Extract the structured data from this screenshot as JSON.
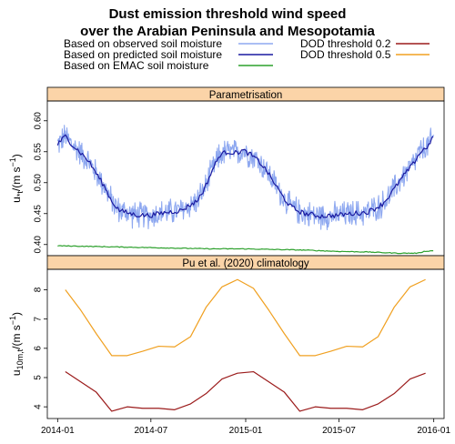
{
  "title_line1": "Dust emission threshold wind speed",
  "title_line2": "over the Arabian Peninsula and Mesopotamia",
  "legend": [
    {
      "label": "Based on observed soil moisture",
      "color": "#8ea8f0"
    },
    {
      "label": "Based on predicted soil moisture",
      "color": "#1a1aa0"
    },
    {
      "label": "Based on EMAC soil moisture",
      "color": "#2ca02c"
    },
    {
      "label": "DOD threshold 0.2",
      "color": "#9b1b1b"
    },
    {
      "label": "DOD threshold 0.5",
      "color": "#f0a020"
    }
  ],
  "x_ticks": [
    "2014-01",
    "2014-07",
    "2015-01",
    "2015-07",
    "2016-01"
  ],
  "chart_data": [
    {
      "type": "line",
      "panel_title": "Parametrisation",
      "ylabel_main": "u",
      "ylabel_sub": "*t",
      "ylabel_unit": "(m s",
      "ylabel_exp": "−1",
      "ylabel_close": ")",
      "ylim": [
        0.382,
        0.632
      ],
      "y_ticks": [
        0.4,
        0.45,
        0.5,
        0.55,
        0.6
      ],
      "y_tick_labels": [
        "0.40",
        "0.45",
        "0.50",
        "0.55",
        "0.60"
      ],
      "xlim_days": [
        -20,
        750
      ],
      "series": [
        {
          "color": "#8ea8f0",
          "style": "noisy-daily",
          "x_days": [
            0,
            15,
            30,
            45,
            60,
            75,
            90,
            105,
            120,
            150,
            180,
            210,
            240,
            255,
            270,
            285,
            300,
            315,
            330,
            345,
            360,
            375,
            390,
            405,
            420,
            435,
            450,
            465,
            480,
            510,
            540,
            570,
            600,
            615,
            630,
            645,
            660,
            675,
            690,
            700,
            712,
            720,
            730
          ],
          "values": [
            0.562,
            0.575,
            0.56,
            0.548,
            0.535,
            0.515,
            0.495,
            0.47,
            0.455,
            0.448,
            0.447,
            0.452,
            0.455,
            0.463,
            0.47,
            0.49,
            0.52,
            0.545,
            0.55,
            0.548,
            0.552,
            0.545,
            0.535,
            0.52,
            0.5,
            0.48,
            0.463,
            0.455,
            0.45,
            0.446,
            0.447,
            0.45,
            0.452,
            0.458,
            0.465,
            0.48,
            0.498,
            0.515,
            0.53,
            0.545,
            0.555,
            0.56,
            0.575
          ],
          "noise_amp": 0.018
        },
        {
          "color": "#1a1aa0",
          "style": "smooth",
          "x_days": [
            0,
            15,
            30,
            45,
            60,
            75,
            90,
            105,
            120,
            150,
            180,
            210,
            240,
            255,
            270,
            285,
            300,
            315,
            330,
            345,
            360,
            375,
            390,
            405,
            420,
            435,
            450,
            465,
            480,
            510,
            540,
            570,
            600,
            615,
            630,
            645,
            660,
            675,
            690,
            700,
            712,
            720,
            730
          ],
          "values": [
            0.562,
            0.575,
            0.56,
            0.548,
            0.535,
            0.515,
            0.495,
            0.47,
            0.455,
            0.448,
            0.447,
            0.452,
            0.455,
            0.463,
            0.47,
            0.49,
            0.52,
            0.545,
            0.55,
            0.548,
            0.552,
            0.545,
            0.535,
            0.52,
            0.5,
            0.48,
            0.463,
            0.455,
            0.45,
            0.446,
            0.447,
            0.45,
            0.452,
            0.458,
            0.465,
            0.48,
            0.498,
            0.515,
            0.53,
            0.545,
            0.555,
            0.56,
            0.575
          ],
          "noise_amp": 0.004
        },
        {
          "color": "#2ca02c",
          "style": "smooth",
          "x_days": [
            0,
            60,
            120,
            180,
            240,
            300,
            360,
            420,
            480,
            540,
            600,
            660,
            700,
            712,
            730
          ],
          "values": [
            0.398,
            0.397,
            0.396,
            0.395,
            0.394,
            0.393,
            0.393,
            0.392,
            0.391,
            0.389,
            0.388,
            0.386,
            0.386,
            0.389,
            0.39
          ],
          "noise_amp": 0.0006
        }
      ]
    },
    {
      "type": "line",
      "panel_title": "Pu et al. (2020)  climatology",
      "ylabel_main": "u",
      "ylabel_sub": "10m,t",
      "ylabel_unit": "(m s",
      "ylabel_exp": "−1",
      "ylabel_close": ")",
      "ylim": [
        3.6,
        8.7
      ],
      "y_ticks": [
        4,
        5,
        6,
        7,
        8
      ],
      "y_tick_labels": [
        "4",
        "5",
        "6",
        "7",
        "8"
      ],
      "xlim_days": [
        -20,
        750
      ],
      "series": [
        {
          "name": "DOD threshold 0.5",
          "color": "#f0a020",
          "x_days": [
            15,
            45,
            75,
            105,
            135,
            165,
            196,
            227,
            258,
            288,
            319,
            349,
            380,
            410,
            440,
            470,
            500,
            530,
            561,
            592,
            622,
            653,
            684,
            714
          ],
          "values": [
            8.0,
            7.3,
            6.5,
            5.75,
            5.75,
            5.9,
            6.07,
            6.05,
            6.4,
            7.4,
            8.1,
            8.35,
            8.05,
            7.3,
            6.5,
            5.75,
            5.75,
            5.9,
            6.07,
            6.05,
            6.4,
            7.4,
            8.1,
            8.35
          ]
        },
        {
          "name": "DOD threshold 0.2",
          "color": "#9b1b1b",
          "x_days": [
            15,
            45,
            75,
            105,
            135,
            165,
            196,
            227,
            258,
            288,
            319,
            349,
            380,
            410,
            440,
            470,
            500,
            530,
            561,
            592,
            622,
            653,
            684,
            714
          ],
          "values": [
            5.2,
            4.85,
            4.5,
            3.85,
            4.0,
            3.95,
            3.95,
            3.9,
            4.1,
            4.45,
            4.95,
            5.15,
            5.2,
            4.85,
            4.5,
            3.85,
            4.0,
            3.95,
            3.95,
            3.9,
            4.1,
            4.45,
            4.95,
            5.15
          ]
        }
      ]
    }
  ]
}
